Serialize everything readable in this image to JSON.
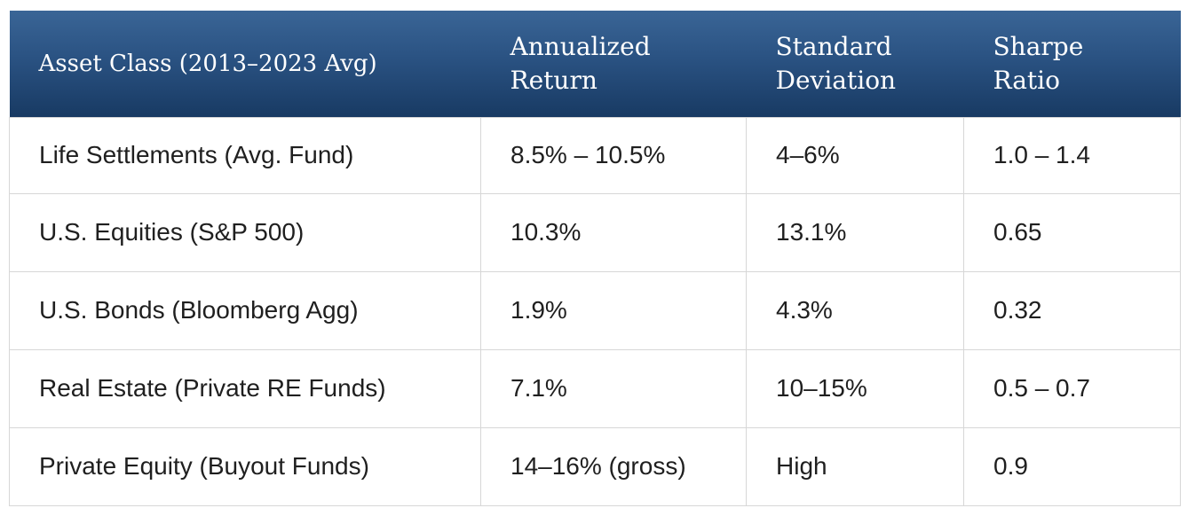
{
  "table": {
    "headers": [
      "Asset Class (2013–2023 Avg)",
      "Annualized Return",
      "Standard Deviation",
      "Sharpe Ratio"
    ],
    "rows": [
      [
        "Life Settlements (Avg. Fund)",
        "8.5% – 10.5%",
        "4–6%",
        "1.0 – 1.4"
      ],
      [
        "U.S. Equities (S&P 500)",
        "10.3%",
        "13.1%",
        "0.65"
      ],
      [
        "U.S. Bonds (Bloomberg Agg)",
        "1.9%",
        "4.3%",
        "0.32"
      ],
      [
        "Real Estate (Private RE Funds)",
        "7.1%",
        "10–15%",
        "0.5 – 0.7"
      ],
      [
        "Private Equity (Buyout Funds)",
        "14–16% (gross)",
        "High",
        "0.9"
      ]
    ]
  },
  "colors": {
    "header_top": "#3a6596",
    "header_bottom": "#183a63",
    "header_text": "#ffffff",
    "cell_text": "#1f1f1f",
    "grid": "#d7d7d7"
  }
}
